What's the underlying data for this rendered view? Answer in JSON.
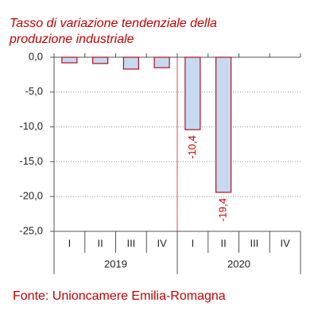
{
  "chart_data": {
    "type": "bar",
    "title": [
      "Tasso di variazione tendenziale della",
      "produzione industriale"
    ],
    "categories": [
      "I",
      "II",
      "III",
      "IV",
      "I",
      "II",
      "III",
      "IV"
    ],
    "groups": [
      "2019",
      "2020"
    ],
    "values": [
      -0.8,
      -0.9,
      -1.7,
      -1.5,
      -10.4,
      -19.4,
      null,
      null
    ],
    "value_labels": [
      null,
      null,
      null,
      null,
      "-10,4",
      "-19,4",
      null,
      null
    ],
    "color": "#c6d9f1",
    "edge_color": "#b01020",
    "ylim": [
      -25,
      0
    ],
    "yticks": [
      {
        "value": 0,
        "label": "0,0"
      },
      {
        "value": -5,
        "label": "-5,0"
      },
      {
        "value": -10,
        "label": "-10,0"
      },
      {
        "value": -15,
        "label": "-15,0"
      },
      {
        "value": -20,
        "label": "-20,0"
      },
      {
        "value": -25,
        "label": "-25,0"
      }
    ],
    "grid": true,
    "source": "Fonte: Unioncamere Emilia-Romagna"
  }
}
